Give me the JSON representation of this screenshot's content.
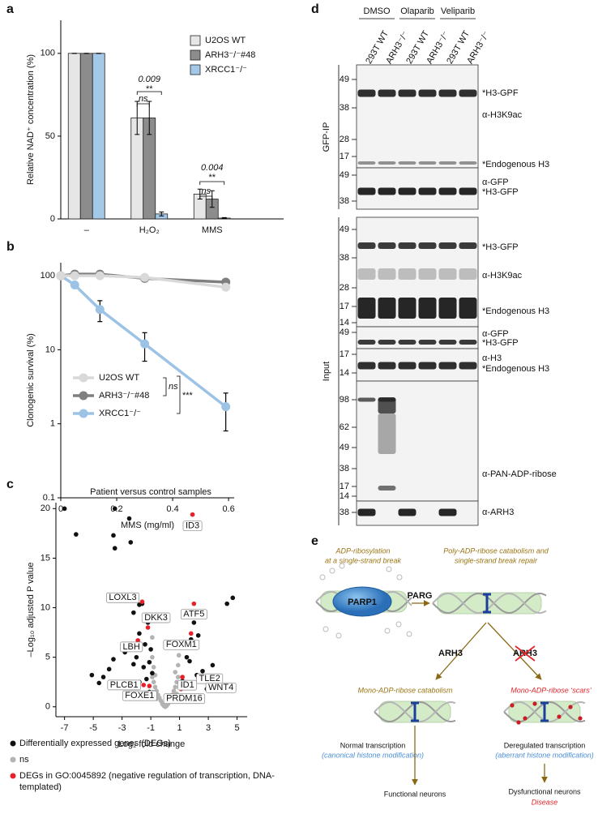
{
  "chart_data": [
    {
      "panel": "a",
      "type": "bar",
      "ylabel": "Relative NAD⁺ concentration (%)",
      "categories": [
        "–",
        "H₂O₂",
        "MMS"
      ],
      "series": [
        {
          "name": "U2OS WT",
          "color": "#e6e6e6",
          "values": [
            100,
            61,
            15
          ],
          "errors": [
            0,
            10,
            3
          ]
        },
        {
          "name": "ARH3⁻/⁻#48",
          "color": "#8c8c8c",
          "values": [
            100,
            61,
            12
          ],
          "errors": [
            0,
            10,
            5
          ]
        },
        {
          "name": "XRCC1⁻/⁻",
          "color": "#a4c8e8",
          "values": [
            100,
            3,
            0.5
          ],
          "errors": [
            0,
            1.2,
            0.3
          ]
        }
      ],
      "ylim": [
        0,
        120
      ],
      "yticks": [
        0,
        50,
        100
      ],
      "annotations": [
        "0.009",
        "**",
        "ns",
        "0.004",
        "**",
        "ns"
      ],
      "legend": "upper right"
    },
    {
      "panel": "b",
      "type": "line",
      "xlabel": "MMS (mg/ml)",
      "ylabel": "Clonogenic survival (%)",
      "x": [
        0,
        0.05,
        0.14,
        0.3,
        0.59
      ],
      "series": [
        {
          "name": "U2OS WT",
          "color": "#d9d9d9",
          "values": [
            100,
            100,
            100,
            95,
            70
          ]
        },
        {
          "name": "ARH3⁻/⁻#48",
          "color": "#7f7f7f",
          "values": [
            100,
            105,
            105,
            92,
            82
          ]
        },
        {
          "name": "XRCC1⁻/⁻",
          "color": "#9cc3e5",
          "values": [
            100,
            75,
            35,
            12,
            1.7
          ],
          "errors": [
            0,
            3,
            11,
            5,
            0.9
          ]
        }
      ],
      "xlim": [
        0,
        0.62
      ],
      "xticks": [
        0,
        0.2,
        0.4,
        0.6
      ],
      "ylim": [
        0.1,
        150
      ],
      "yticks": [
        0.1,
        1,
        10,
        100
      ],
      "log_y": true,
      "annotations": [
        "ns",
        "***"
      ],
      "legend": "lower left"
    },
    {
      "panel": "c",
      "type": "scatter",
      "title": "Patient versus control samples",
      "xlabel": "Log₂ fold change",
      "ylabel": "–Log₁₀ adjusted P value",
      "series": [
        {
          "name": "Differentially expressed genes (DEGs)",
          "color": "#111111",
          "x": [
            -7,
            -6.2,
            -3.5,
            -2.5,
            -3.6,
            -3.5,
            -2.4,
            -1.8,
            -1.6,
            -2.2,
            -1.2,
            -1.8,
            -1.4,
            -2.8,
            -2.0,
            -2.2,
            -1.5,
            -1.1,
            -3.6,
            -4.3,
            -3.3,
            -2.6,
            -1.8,
            -1.3,
            -1.1,
            -4.6,
            -5.1,
            -3.9,
            2.5,
            1.5,
            2.0,
            1.2,
            1.8,
            2.3,
            1.5,
            1.7,
            2.2,
            2.6,
            3.3,
            1.2,
            1.4,
            3.5,
            4.7,
            4.3,
            3.9,
            2.9,
            -0.9,
            -1.0
          ],
          "values": [
            20,
            17.4,
            20,
            19,
            17.3,
            16,
            16.6,
            10.3,
            10.4,
            9.5,
            8.5,
            7.4,
            6.3,
            5.5,
            5,
            4.3,
            4,
            4.5,
            4.8,
            3,
            2.5,
            2,
            2.5,
            2.8,
            1.5,
            2.4,
            3.2,
            3.8,
            9.4,
            9.2,
            8.5,
            6,
            6.8,
            7.2,
            5,
            4.6,
            3.2,
            3.6,
            4.2,
            2.6,
            2,
            3,
            11,
            10.4,
            2.2,
            1.8,
            3.4,
            5.8
          ]
        },
        {
          "name": "ns",
          "color": "#b3b3b3",
          "x": [
            -0.9,
            -0.8,
            -0.7,
            -0.6,
            -0.5,
            -0.4,
            -0.3,
            -0.2,
            -0.1,
            0,
            0.1,
            0.2,
            0.3,
            0.4,
            0.5,
            0.6,
            0.7,
            0.8,
            0.9,
            -0.9,
            -0.8,
            -0.9,
            -0.95,
            0.9,
            0.95,
            -0.6,
            0.6,
            -0.85,
            0.8,
            -0.7,
            0.7
          ],
          "values": [
            3,
            2.5,
            2,
            1.6,
            1.2,
            0.9,
            0.6,
            0.3,
            0.1,
            0,
            0.1,
            0.3,
            0.6,
            0.9,
            1.2,
            1.6,
            2,
            2.5,
            3,
            5,
            4,
            7,
            9,
            4.2,
            5.2,
            0.8,
            0.7,
            1.5,
            1.3,
            3.2,
            3.5
          ]
        },
        {
          "name": "DEGs in GO:0045892 (negative regulation of transcription, DNA-templated)",
          "color": "#e8202a",
          "x": [
            1.9,
            -1.6,
            2.0,
            -1.2,
            -1.9,
            1.8,
            1.2,
            2.3,
            3.2,
            -1.5,
            -1.1,
            1.1
          ],
          "values": [
            19.4,
            10.6,
            10.4,
            8.0,
            6.7,
            7.4,
            3.0,
            3.0,
            2.9,
            2.2,
            2.1,
            1.8
          ],
          "labels": [
            "ID3",
            "LOXL3",
            "ATF5",
            "DKK3",
            "LBH",
            "FOXM1",
            "ID1",
            "TLE2",
            "WNT4",
            "PLCB1",
            "FOXE1",
            "PRDM16"
          ]
        }
      ],
      "xlim": [
        -7.6,
        5.7
      ],
      "xticks": [
        -7,
        -5,
        -3,
        -1,
        1,
        3,
        5
      ],
      "ylim": [
        -1,
        20.6
      ],
      "yticks": [
        0,
        5,
        10,
        15,
        20
      ],
      "legend": "below"
    }
  ],
  "blot": {
    "panel": "d",
    "groups": [
      "DMSO",
      "Olaparib",
      "Veliparib"
    ],
    "lanes": [
      "293T WT",
      "ARH3⁻/⁻",
      "293T WT",
      "ARH3⁻/⁻",
      "293T WT",
      "ARH3⁻/⁻"
    ],
    "sections": [
      {
        "label": "GFP-IP",
        "panels": [
          {
            "markers": [
              "49",
              "38",
              "28",
              "17"
            ],
            "labels": [
              "*H3-GPF",
              "α-H3K9ac",
              "*Endogenous H3"
            ]
          },
          {
            "markers": [
              "49",
              "38"
            ],
            "labels": [
              "α-GFP",
              "*H3-GFP"
            ]
          }
        ]
      },
      {
        "label": "Input",
        "panels": [
          {
            "markers": [
              "49",
              "38",
              "28",
              "17",
              "14"
            ],
            "labels": [
              "*H3-GFP",
              "α-H3K9ac",
              "*Endogenous H3"
            ]
          },
          {
            "markers": [
              "49"
            ],
            "labels": [
              "α-GFP",
              "*H3-GFP"
            ]
          },
          {
            "markers": [
              "17",
              "14"
            ],
            "labels": [
              "α-H3",
              "*Endogenous H3"
            ]
          },
          {
            "markers": [
              "98",
              "62",
              "49",
              "38",
              "17",
              "14"
            ],
            "labels": [
              "α-PAN-ADP-ribose"
            ]
          },
          {
            "markers": [
              "38"
            ],
            "labels": [
              "α-ARH3"
            ]
          }
        ]
      }
    ]
  },
  "diagram": {
    "panel": "e",
    "step1": [
      "ADP-ribosylation",
      "at a single-strand break"
    ],
    "enzyme1": "PARP1",
    "enzyme2": "PARG",
    "step2": [
      "Poly-ADP-ribose catabolism and",
      "single-strand break repair"
    ],
    "arh3_present": "ARH3",
    "arh3_absent": "ARH3",
    "left": {
      "process": "Mono-ADP-ribose catabolism",
      "outcome": "Normal transcription",
      "modification": "(canonical histone modification)",
      "result": "Functional neurons"
    },
    "right": {
      "process": "Mono-ADP-ribose ‘scars’",
      "outcome": "Deregulated transcription",
      "modification": "(aberrant histone modification)",
      "result": "Dysfunctional neurons",
      "disease": "Disease"
    }
  }
}
